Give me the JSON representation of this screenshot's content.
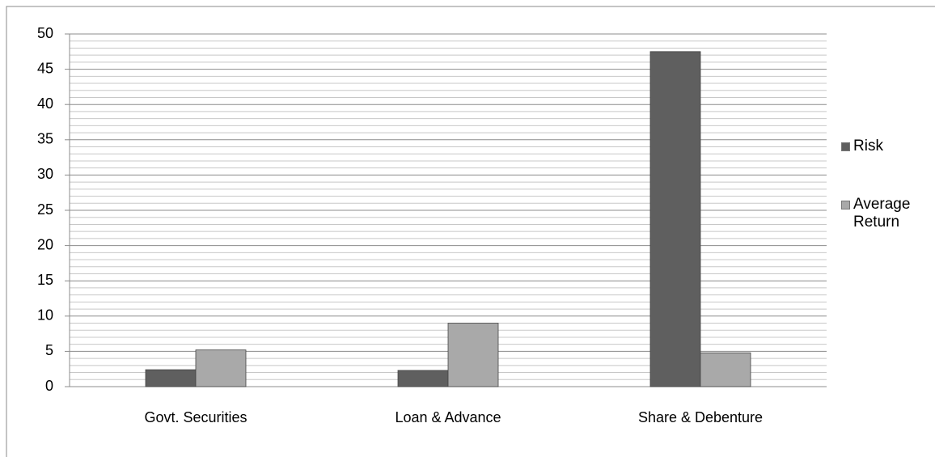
{
  "chart_data": {
    "type": "bar",
    "categories": [
      "Govt. Securities",
      "Loan & Advance",
      "Share & Debenture"
    ],
    "series": [
      {
        "name": "Risk",
        "color": "#5f5f5f",
        "values": [
          2.4,
          2.3,
          47.5
        ]
      },
      {
        "name": "Average Return",
        "color": "#a9a9a9",
        "values": [
          5.2,
          9,
          4.8
        ]
      }
    ],
    "ylim": [
      0,
      50
    ],
    "yticks": [
      0,
      5,
      10,
      15,
      20,
      25,
      30,
      35,
      40,
      45,
      50
    ],
    "grid": true,
    "minor_grid": true,
    "legend": "right"
  }
}
